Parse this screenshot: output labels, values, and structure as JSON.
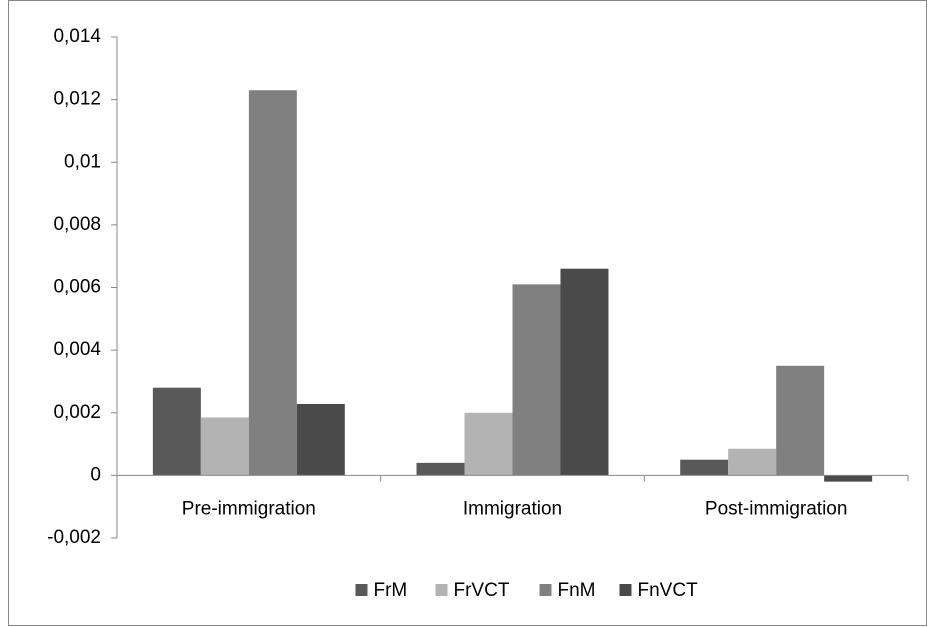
{
  "chart_data": {
    "type": "bar",
    "categories": [
      "Pre-immigration",
      "Immigration",
      "Post-immigration"
    ],
    "series": [
      {
        "name": "FrM",
        "color": "#595959",
        "values": [
          0.0028,
          0.0004,
          0.0005
        ]
      },
      {
        "name": "FrVCT",
        "color": "#b3b3b3",
        "values": [
          0.00185,
          0.002,
          0.00085
        ]
      },
      {
        "name": "FnM",
        "color": "#808080",
        "values": [
          0.0123,
          0.0061,
          0.0035
        ]
      },
      {
        "name": "FnVCT",
        "color": "#4a4a4a",
        "values": [
          0.00228,
          0.0066,
          -0.0002
        ]
      }
    ],
    "ylim": [
      -0.002,
      0.014
    ],
    "yticks": [
      {
        "value": -0.002,
        "label": "-0,002"
      },
      0,
      {
        "value": 0.002,
        "label": "0,002"
      },
      {
        "value": 0.004,
        "label": "0,004"
      },
      {
        "value": 0.006,
        "label": "0,006"
      },
      {
        "value": 0.008,
        "label": "0,008"
      },
      {
        "value": 0.01,
        "label": "0,01"
      },
      {
        "value": 0.012,
        "label": "0,012"
      },
      {
        "value": 0.014,
        "label": "0,014"
      }
    ],
    "grid": false,
    "legend": "bottom"
  }
}
